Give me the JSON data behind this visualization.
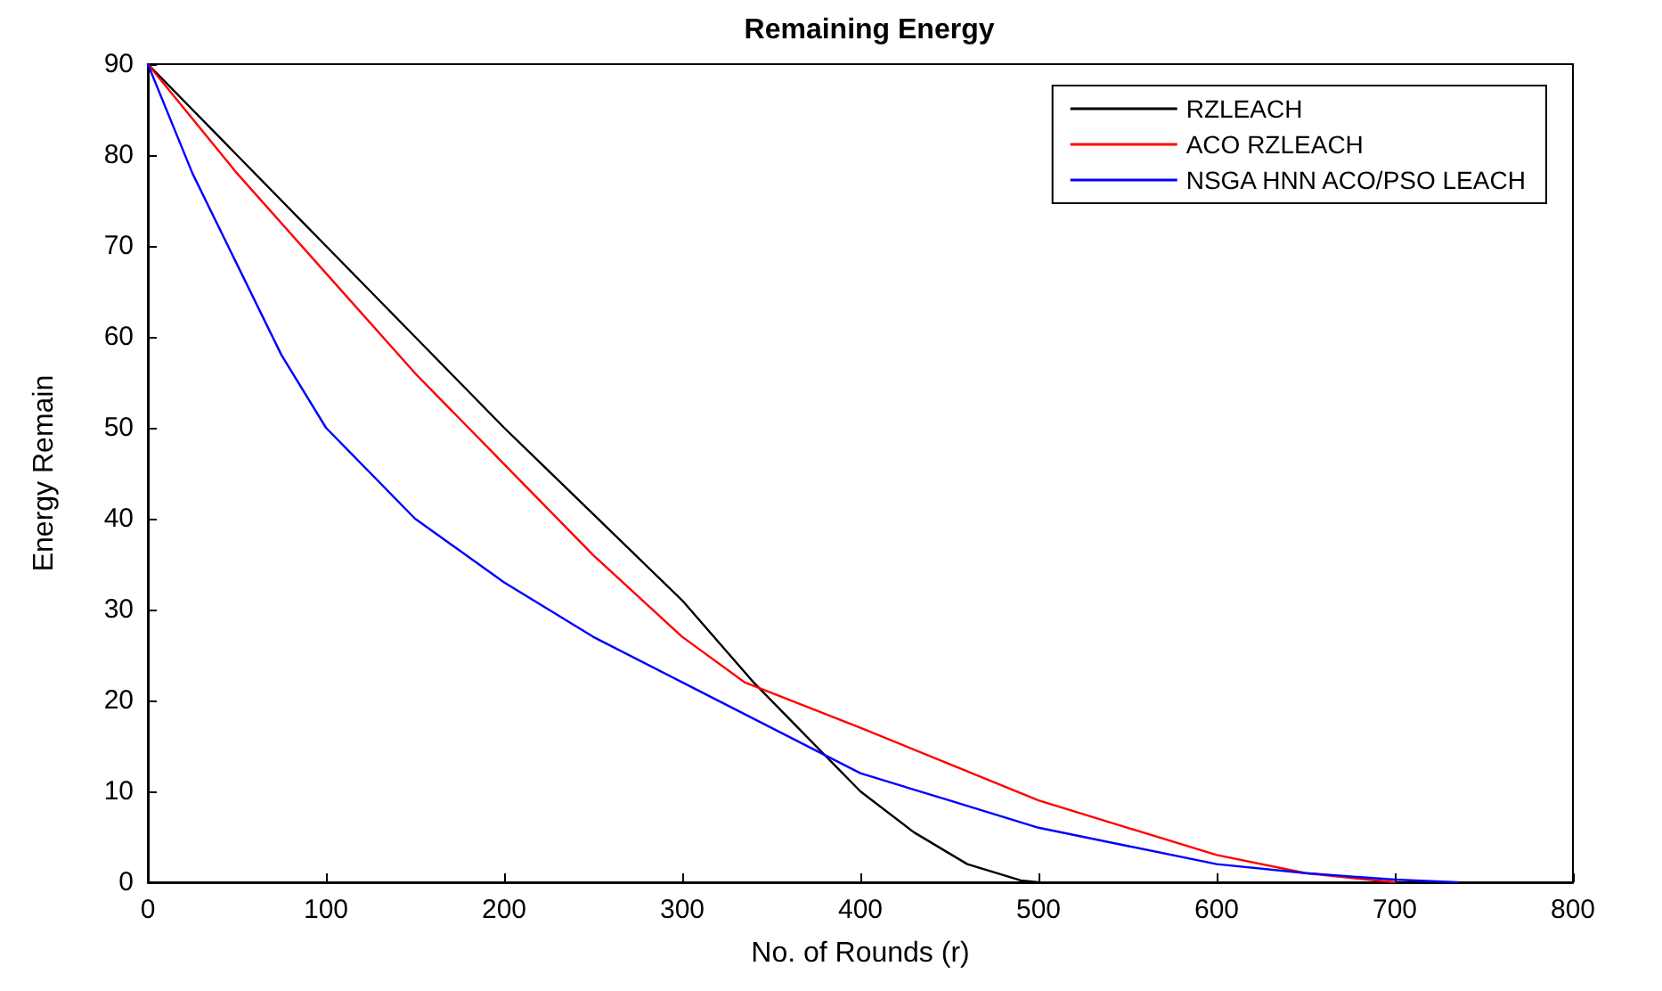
{
  "chart_data": {
    "type": "line",
    "title": "Remaining Energy",
    "xlabel": "No. of Rounds (r)",
    "ylabel": "Energy Remain",
    "xlim": [
      0,
      800
    ],
    "xticks": [
      0,
      100,
      200,
      300,
      400,
      500,
      600,
      700,
      800
    ],
    "ylim": [
      0,
      90
    ],
    "yticks": [
      0,
      10,
      20,
      30,
      40,
      50,
      60,
      70,
      80,
      90
    ],
    "grid": false,
    "legend": "top right",
    "marker": "none",
    "line_style": "solid",
    "series": [
      {
        "name": "RZLEACH",
        "color": "#000000",
        "x": [
          0,
          50,
          100,
          150,
          200,
          250,
          300,
          340,
          370,
          400,
          430,
          460,
          490,
          500
        ],
        "values": [
          90,
          80,
          70,
          60,
          50,
          40.5,
          31,
          22,
          16,
          10,
          5.5,
          2,
          0.2,
          0
        ]
      },
      {
        "name": "ACO RZLEACH",
        "color": "#ff0000",
        "x": [
          0,
          50,
          100,
          150,
          200,
          250,
          300,
          335,
          400,
          450,
          500,
          550,
          600,
          650,
          700
        ],
        "values": [
          90,
          78,
          67,
          56,
          46,
          36,
          27,
          22,
          17,
          13,
          9,
          6,
          3,
          1,
          0
        ]
      },
      {
        "name": "NSGA HNN ACO/PSO LEACH",
        "color": "#0000ff",
        "x": [
          0,
          25,
          50,
          75,
          100,
          150,
          200,
          250,
          300,
          350,
          400,
          450,
          500,
          550,
          600,
          650,
          700,
          735
        ],
        "values": [
          90,
          78,
          68,
          58,
          50,
          40,
          33,
          27,
          22,
          17,
          12,
          9,
          6,
          4,
          2,
          1,
          0.3,
          0
        ]
      }
    ]
  }
}
